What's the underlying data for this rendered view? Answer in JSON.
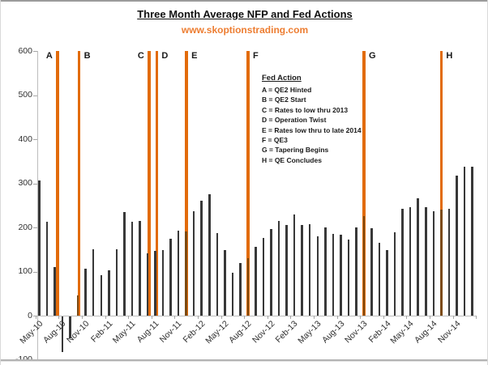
{
  "header": {
    "title": "Three Month Average NFP and Fed Actions",
    "subtitle": "www.skoptionstrading.com"
  },
  "legend": {
    "title": "Fed Action",
    "items": [
      "A = QE2 Hinted",
      "B = QE2 Start",
      "C = Rates to low thru 2013",
      "D = Operation Twist",
      "E = Rates low thru to late 2014",
      "F  = QE3",
      "G = Tapering Begins",
      "H = QE Concludes"
    ]
  },
  "colors": {
    "bar": "#383838",
    "bar_over_line": "#7B4A12",
    "fed_line_orange": "#E26B0A",
    "subtitle_orange": "#ED7D31",
    "axis_gray": "#BDBDBD",
    "tick_gray": "#A6A6A6",
    "axis_text": "#303030"
  },
  "chart_data": {
    "type": "bar",
    "title": "Three Month Average NFP and Fed Actions",
    "subtitle": "www.skoptionstrading.com",
    "xlabel": "",
    "ylabel": "",
    "ylim": [
      -100,
      600
    ],
    "grid": false,
    "y_ticks": [
      600,
      500,
      400,
      300,
      200,
      100,
      0,
      -100
    ],
    "x_tick_labels": [
      "May-10",
      "Aug-10",
      "Nov-10",
      "Feb-11",
      "May-11",
      "Aug-11",
      "Nov-11",
      "Feb-12",
      "May-12",
      "Aug-12",
      "Nov-12",
      "Feb-13",
      "May-13",
      "Aug-13",
      "Nov-13",
      "Feb-14",
      "May-14",
      "Aug-14",
      "Nov-14"
    ],
    "categories": [
      "May-10",
      "Jun-10",
      "Jul-10",
      "Aug-10",
      "Sep-10",
      "Oct-10",
      "Nov-10",
      "Dec-10",
      "Jan-11",
      "Feb-11",
      "Mar-11",
      "Apr-11",
      "May-11",
      "Jun-11",
      "Jul-11",
      "Aug-11",
      "Sep-11",
      "Oct-11",
      "Nov-11",
      "Dec-11",
      "Jan-12",
      "Feb-12",
      "Mar-12",
      "Apr-12",
      "May-12",
      "Jun-12",
      "Jul-12",
      "Aug-12",
      "Sep-12",
      "Oct-12",
      "Nov-12",
      "Dec-12",
      "Jan-13",
      "Feb-13",
      "Mar-13",
      "Apr-13",
      "May-13",
      "Jun-13",
      "Jul-13",
      "Aug-13",
      "Sep-13",
      "Oct-13",
      "Nov-13",
      "Dec-13",
      "Jan-14",
      "Feb-14",
      "Mar-14",
      "Apr-14",
      "May-14",
      "Jun-14",
      "Jul-14",
      "Aug-14",
      "Sep-14",
      "Oct-14",
      "Nov-14",
      "Dec-14",
      "Jan-15"
    ],
    "values": [
      307,
      213,
      110,
      -80,
      -50,
      46,
      107,
      150,
      91,
      103,
      150,
      234,
      212,
      215,
      141,
      146,
      149,
      174,
      192,
      190,
      237,
      260,
      276,
      188,
      149,
      97,
      119,
      131,
      156,
      177,
      196,
      214,
      205,
      230,
      205,
      208,
      180,
      200,
      185,
      183,
      172,
      200,
      225,
      198,
      166,
      148,
      189,
      242,
      246,
      266,
      245,
      237,
      240,
      243,
      317,
      338,
      337
    ],
    "fed_actions": [
      {
        "letter": "A",
        "description": "QE2 Hinted",
        "month": "Jul-10",
        "position_index": 3.35,
        "label_side": "left",
        "overlaps_bar": false
      },
      {
        "letter": "B",
        "description": "QE2 Start",
        "month": "Oct-10",
        "position_index": 6.15,
        "label_side": "right",
        "overlaps_bar": true
      },
      {
        "letter": "C",
        "description": "Rates to low thru 2013",
        "month": "Jul-11",
        "position_index": 15.2,
        "label_side": "left",
        "overlaps_bar": false
      },
      {
        "letter": "D",
        "description": "Operation Twist",
        "month": "Aug-11",
        "position_index": 16.2,
        "label_side": "right",
        "overlaps_bar": false
      },
      {
        "letter": "E",
        "description": "Rates low thru to late 2014",
        "month": "Dec-11",
        "position_index": 20.05,
        "label_side": "right",
        "overlaps_bar": true
      },
      {
        "letter": "F",
        "description": "QE3",
        "month": "Aug-12",
        "position_index": 28.0,
        "label_side": "right",
        "overlaps_bar": true
      },
      {
        "letter": "G",
        "description": "Tapering Begins",
        "month": "Nov-13",
        "position_index": 43.0,
        "label_side": "right",
        "overlaps_bar": true
      },
      {
        "letter": "H",
        "description": "QE Concludes",
        "month": "Sep-14",
        "position_index": 53.0,
        "label_side": "right",
        "overlaps_bar": true
      }
    ]
  }
}
